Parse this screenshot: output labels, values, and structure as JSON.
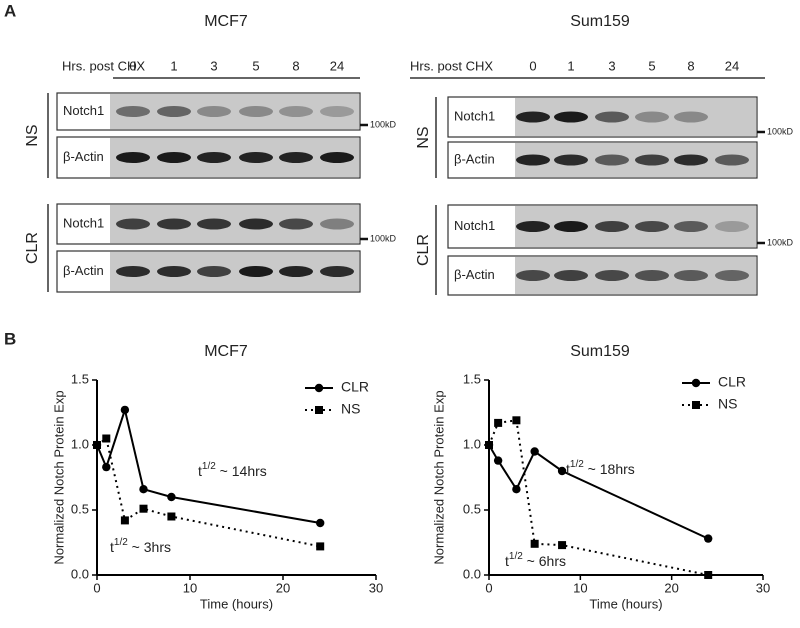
{
  "panel_labels": [
    "A",
    "B"
  ],
  "blots": [
    {
      "title": "MCF7",
      "time_label": "Hrs. post CHX",
      "times": [
        "0",
        "1",
        "3",
        "5",
        "8",
        "24"
      ],
      "groups": [
        {
          "name": "NS",
          "rows": [
            "Notch1",
            "β-Actin"
          ],
          "marker": "100kD"
        },
        {
          "name": "CLR",
          "rows": [
            "Notch1",
            "β-Actin"
          ],
          "marker": "100kD"
        }
      ]
    },
    {
      "title": "Sum159",
      "time_label": "Hrs. post CHX",
      "times": [
        "0",
        "1",
        "3",
        "5",
        "8",
        "24"
      ],
      "groups": [
        {
          "name": "NS",
          "rows": [
            "Notch1",
            "β-Actin"
          ],
          "marker": "100kD"
        },
        {
          "name": "CLR",
          "rows": [
            "Notch1",
            "β-Actin"
          ],
          "marker": "100kD"
        }
      ]
    }
  ],
  "chart_data": [
    {
      "type": "line",
      "title": "MCF7",
      "x_label": "Time (hours)",
      "y_label": "Normalized Notch Protein Exp",
      "x": [
        0,
        1,
        3,
        5,
        8,
        24
      ],
      "xlim": [
        0,
        30
      ],
      "xticks": [
        0,
        10,
        20,
        30
      ],
      "ylim": [
        0,
        1.5
      ],
      "yticks": [
        {
          "value": 0,
          "label": "0.0"
        },
        0.5,
        {
          "value": 1,
          "label": "1.0"
        },
        1.5
      ],
      "legend": "upper right",
      "series": [
        {
          "name": "CLR",
          "color": "#000000",
          "style": "solid",
          "marker": "circle",
          "values": [
            1.0,
            0.83,
            1.27,
            0.66,
            0.6,
            0.4
          ]
        },
        {
          "name": "NS",
          "color": "#000000",
          "style": "dotted",
          "marker": "square",
          "values": [
            1.0,
            1.05,
            0.42,
            0.51,
            0.45,
            0.22
          ]
        }
      ],
      "annotations": [
        {
          "prefix": "t",
          "sup": "1/2",
          "suffix": " ~ 14hrs"
        },
        {
          "prefix": "t",
          "sup": "1/2",
          "suffix": " ~ 3hrs"
        }
      ]
    },
    {
      "type": "line",
      "title": "Sum159",
      "x_label": "Time (hours)",
      "y_label": "Normalized Notch Protein Exp",
      "x": [
        0,
        1,
        3,
        5,
        8,
        24
      ],
      "xlim": [
        0,
        30
      ],
      "xticks": [
        0,
        10,
        20,
        30
      ],
      "ylim": [
        0,
        1.5
      ],
      "yticks": [
        {
          "value": 0,
          "label": "0.0"
        },
        0.5,
        {
          "value": 1,
          "label": "1.0"
        },
        1.5
      ],
      "legend": "upper right",
      "series": [
        {
          "name": "CLR",
          "color": "#000000",
          "style": "solid",
          "marker": "circle",
          "values": [
            1.0,
            0.88,
            0.66,
            0.95,
            0.8,
            0.28
          ]
        },
        {
          "name": "NS",
          "color": "#000000",
          "style": "dotted",
          "marker": "square",
          "values": [
            1.0,
            1.17,
            1.19,
            0.24,
            0.23,
            0.0
          ]
        }
      ],
      "annotations": [
        {
          "prefix": "t",
          "sup": "1/2",
          "suffix": " ~ 18hrs"
        },
        {
          "prefix": "t",
          "sup": "1/2",
          "suffix": " ~ 6hrs"
        }
      ]
    }
  ]
}
